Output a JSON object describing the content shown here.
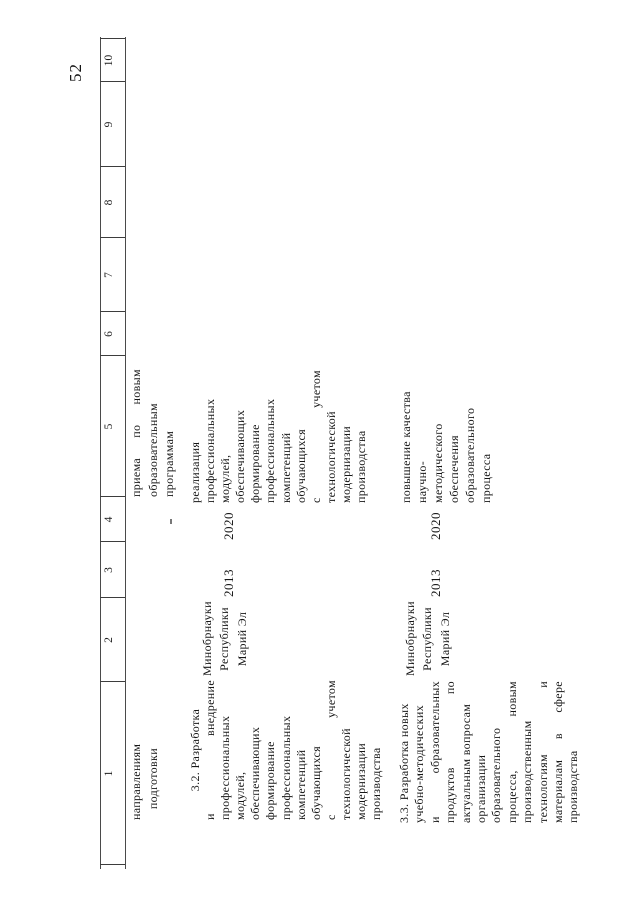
{
  "page_number": "52",
  "table": {
    "header_columns": [
      "1",
      "2",
      "3",
      "4",
      "5",
      "6",
      "7",
      "8",
      "9",
      "10"
    ],
    "rows": [
      {
        "name": "continuation-row",
        "activity_lines": [
          "направлениям",
          "подготовки"
        ],
        "result_lines": [
          "приема|по|новым",
          "образовательным",
          "программам"
        ]
      },
      {
        "name": "row-3-2",
        "activity_lines": [
          "3.2. Разработка",
          "и|внедрение",
          "профессиональных",
          "модулей,",
          "обеспечивающих",
          "формирование",
          "профессиональных",
          "компетенций",
          "обучающихся",
          "с|учетом",
          "технологической",
          "модернизации",
          "производства"
        ],
        "executor_lines": [
          "Минобрнауки",
          "Республики",
          "Марий Эл"
        ],
        "start_year": "2013",
        "end_year": "2020",
        "result_lines": [
          "реализация",
          "профессиональных",
          "модулей,",
          "обеспечивающих",
          "формирование",
          "профессиональных",
          "компетенций",
          "обучающихся",
          "с|учетом",
          "технологической",
          "модернизации",
          "производства"
        ]
      },
      {
        "name": "row-3-3",
        "activity_lines": [
          "3.3. Разработка новых",
          "учебно-методических",
          "и|образовательных",
          "продуктов|по",
          "актуальным вопросам",
          "организации",
          "образовательного",
          "процесса,|новым",
          "производственным",
          "технологиям|и",
          "материалам|в|сфере",
          "производства"
        ],
        "executor_lines": [
          "Минобрнауки",
          "Республики",
          "Марий Эл"
        ],
        "start_year": "2013",
        "end_year": "2020",
        "result_lines": [
          "повышение качества",
          "научно-",
          "методического",
          "обеспечения",
          "образовательного",
          "процесса"
        ]
      }
    ]
  }
}
